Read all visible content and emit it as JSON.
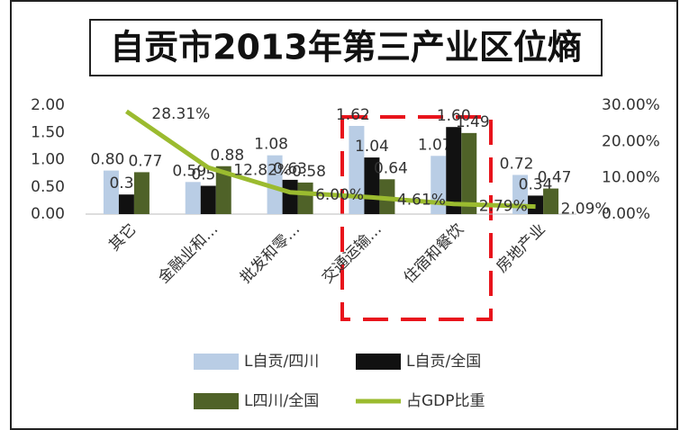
{
  "chart_data": {
    "type": "bar",
    "title": "自贡市2013年第三产业区位熵",
    "categories": [
      "其它",
      "金融业和…",
      "批发和零…",
      "交通运输…",
      "住宿和餐饮",
      "房地产业"
    ],
    "series": [
      {
        "name": "L自贡/四川",
        "color": "#b9cde5",
        "values": [
          0.8,
          0.59,
          1.08,
          1.62,
          1.07,
          0.72
        ],
        "value_labels": [
          "0.80",
          "0.59",
          "1.08",
          "1.62",
          "1.07",
          "0.72"
        ]
      },
      {
        "name": "L自贡/全国",
        "color": "#111111",
        "values": [
          0.36,
          0.52,
          0.63,
          1.04,
          1.6,
          0.34
        ],
        "value_labels": [
          "0.36",
          "0.52",
          "0.63",
          "1.04",
          "1.60",
          "0.34"
        ]
      },
      {
        "name": "L四川/全国",
        "color": "#4f6228",
        "values": [
          0.77,
          0.88,
          0.58,
          0.64,
          1.49,
          0.47
        ],
        "value_labels": [
          "0.77",
          "0.88",
          "0.58",
          "0.64",
          "1.49",
          "0.47"
        ]
      },
      {
        "name": "占GDP比重",
        "type": "line",
        "axis": "y2",
        "color": "#9bbb2f",
        "values": [
          28.31,
          12.82,
          6.0,
          4.61,
          2.79,
          2.09
        ],
        "value_labels": [
          "28.31%",
          "12.82%",
          "6.00%",
          "4.61%",
          "2.79%",
          "2.09%"
        ]
      }
    ],
    "ylim": [
      0,
      2
    ],
    "yticks": [
      {
        "value": 0,
        "label": "0.00"
      },
      {
        "value": 0.5,
        "label": "0.50"
      },
      {
        "value": 1,
        "label": "1.00"
      },
      {
        "value": 1.5,
        "label": "1.50"
      },
      {
        "value": 2,
        "label": "2.00"
      }
    ],
    "y2lim": [
      0,
      30
    ],
    "y2ticks": [
      {
        "value": 0,
        "label": "0.00%"
      },
      {
        "value": 10,
        "label": "10.00%"
      },
      {
        "value": 20,
        "label": "20.00%"
      },
      {
        "value": 30,
        "label": "30.00%"
      }
    ]
  }
}
